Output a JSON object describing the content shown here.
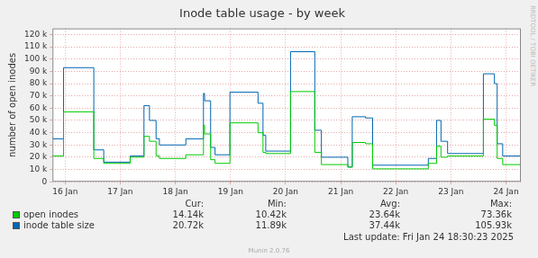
{
  "chart_data": {
    "type": "line",
    "title": "Inode table usage - by week",
    "y_label": "number of open inodes",
    "line_style": "steps",
    "grid": true,
    "legend": "bottom",
    "x": [
      16.27,
      16.47,
      17.02,
      17.2,
      17.68,
      17.93,
      18.03,
      18.15,
      18.21,
      18.69,
      19.01,
      19.03,
      19.14,
      19.22,
      19.49,
      20.0,
      20.09,
      20.14,
      20.59,
      21.03,
      21.15,
      21.63,
      21.71,
      21.95,
      22.08,
      23.09,
      23.24,
      23.32,
      23.44,
      24.09,
      24.29,
      24.34,
      24.44,
      24.62,
      24.77
    ],
    "xlim": [
      16.27,
      24.77
    ],
    "xticks": [
      {
        "value": 16.5,
        "label": "16 Jan"
      },
      {
        "value": 17.5,
        "label": "17 Jan"
      },
      {
        "value": 18.5,
        "label": "18 Jan"
      },
      {
        "value": 19.5,
        "label": "19 Jan"
      },
      {
        "value": 20.5,
        "label": "20 Jan"
      },
      {
        "value": 21.5,
        "label": "21 Jan"
      },
      {
        "value": 22.5,
        "label": "22 Jan"
      },
      {
        "value": 23.5,
        "label": "23 Jan"
      },
      {
        "value": 24.5,
        "label": "24 Jan"
      }
    ],
    "ylim": [
      0,
      125000
    ],
    "yticks": [
      0,
      {
        "value": 10000,
        "label": "10 k"
      },
      {
        "value": 20000,
        "label": "20 k"
      },
      {
        "value": 30000,
        "label": "30 k"
      },
      {
        "value": 40000,
        "label": "40 k"
      },
      {
        "value": 50000,
        "label": "50 k"
      },
      {
        "value": 60000,
        "label": "60 k"
      },
      {
        "value": 70000,
        "label": "70 k"
      },
      {
        "value": 80000,
        "label": "80 k"
      },
      {
        "value": 90000,
        "label": "90 k"
      },
      {
        "value": 100000,
        "label": "100 k"
      },
      {
        "value": 110000,
        "label": "110 k"
      },
      {
        "value": 120000,
        "label": "120 k"
      }
    ],
    "stat_headers": [
      "Cur:",
      "Min:",
      "Avg:",
      "Max:"
    ],
    "series": [
      {
        "name": "open inodes",
        "color": "#00cc00",
        "values": [
          22000,
          21000,
          57000,
          19000,
          15000,
          20000,
          37000,
          33000,
          21000,
          19000,
          22000,
          46000,
          39000,
          18000,
          15000,
          48000,
          40000,
          24000,
          23000,
          73500,
          24000,
          14000,
          12000,
          32000,
          31000,
          10500,
          15000,
          29000,
          20000,
          21000,
          51000,
          46000,
          19000,
          14000,
          14000
        ],
        "stats": [
          {
            "value": 14140,
            "label": "14.14k"
          },
          {
            "value": 10420,
            "label": "10.42k"
          },
          {
            "value": 23640,
            "label": "23.64k"
          },
          {
            "value": 73360,
            "label": "73.36k"
          }
        ]
      },
      {
        "name": "inode table size",
        "color": "#0066b3",
        "values": [
          37000,
          35000,
          93000,
          26000,
          16000,
          21000,
          62000,
          50000,
          35000,
          30000,
          35000,
          72000,
          66000,
          28000,
          22000,
          73000,
          64000,
          38000,
          25000,
          106000,
          42000,
          20000,
          12000,
          53000,
          52000,
          13500,
          19000,
          50000,
          33000,
          23000,
          88000,
          80000,
          31000,
          21000,
          21000
        ],
        "stats": [
          {
            "value": 20720,
            "label": "20.72k"
          },
          {
            "value": 11890,
            "label": "11.89k"
          },
          {
            "value": 37440,
            "label": "37.44k"
          },
          {
            "value": 105930,
            "label": "105.93k"
          }
        ]
      }
    ],
    "last_update": "Last update: Fri Jan 24 18:30:23 2025",
    "generator": "Munin 2.0.76",
    "watermark": "RRDTOOL / TOBI OETIKER"
  }
}
